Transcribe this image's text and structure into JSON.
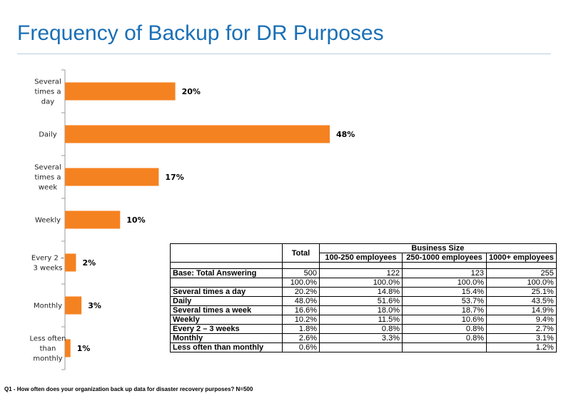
{
  "header": {
    "title": "Frequency of Backup for DR Purposes"
  },
  "chart_data": {
    "type": "bar",
    "orientation": "horizontal",
    "categories": [
      [
        "Several",
        "times a",
        "day"
      ],
      [
        "Daily"
      ],
      [
        "Several",
        "times a",
        "week"
      ],
      [
        "Weekly"
      ],
      [
        "Every 2 –",
        "3 weeks"
      ],
      [
        "Monthly"
      ],
      [
        "Less often",
        "than",
        "monthly"
      ]
    ],
    "values": [
      20,
      48,
      17,
      10,
      2,
      3,
      1
    ],
    "value_labels": [
      "20%",
      "48%",
      "17%",
      "10%",
      "2%",
      "3%",
      "1%"
    ],
    "bar_color": "#f58220",
    "xlim": [
      0,
      100
    ]
  },
  "table": {
    "header_total": "Total",
    "header_group": "Business Size",
    "columns": [
      "100-250 employees",
      "250-1000 employees",
      "1000+ employees"
    ],
    "base_row": {
      "label": "Base: Total Answering",
      "values": [
        "500",
        "122",
        "123",
        "255"
      ]
    },
    "pct_row": {
      "label": "",
      "values": [
        "100.0%",
        "100.0%",
        "100.0%",
        "100.0%"
      ]
    },
    "rows": [
      {
        "label": "Several times a day",
        "values": [
          "20.2%",
          "14.8%",
          "15.4%",
          "25.1%"
        ]
      },
      {
        "label": "Daily",
        "values": [
          "48.0%",
          "51.6%",
          "53.7%",
          "43.5%"
        ]
      },
      {
        "label": "Several times a week",
        "values": [
          "16.6%",
          "18.0%",
          "18.7%",
          "14.9%"
        ]
      },
      {
        "label": "Weekly",
        "values": [
          "10.2%",
          "11.5%",
          "10.6%",
          "9.4%"
        ]
      },
      {
        "label": "Every 2 – 3 weeks",
        "values": [
          "1.8%",
          "0.8%",
          "0.8%",
          "2.7%"
        ]
      },
      {
        "label": "Monthly",
        "values": [
          "2.6%",
          "3.3%",
          "0.8%",
          "3.1%"
        ]
      },
      {
        "label": "Less often than monthly",
        "values": [
          "0.6%",
          "",
          "",
          "1.2%"
        ]
      }
    ]
  },
  "footnote": "Q1 - How often does your organization back up data for disaster recovery purposes? N=500"
}
